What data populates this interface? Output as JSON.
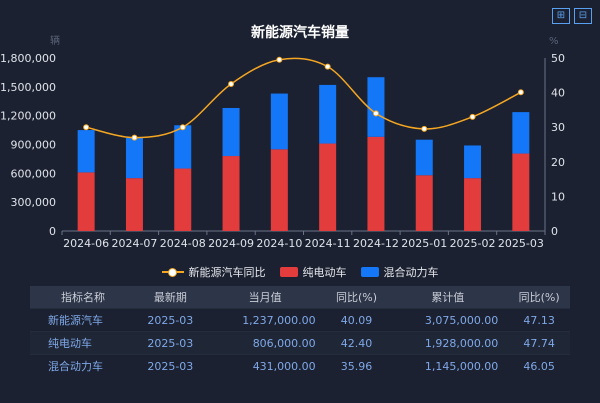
{
  "title": "新能源汽车销量",
  "axis_left_unit": "辆",
  "axis_right_unit": "%",
  "legend": [
    "新能源汽车同比",
    "纯电动车",
    "混合动力车"
  ],
  "colors": {
    "pure": "#e23c3c",
    "hybrid": "#1477f8",
    "line": "#f5a623"
  },
  "chart_data": {
    "type": "bar",
    "categories": [
      "2024-06",
      "2024-07",
      "2024-08",
      "2024-09",
      "2024-10",
      "2024-11",
      "2024-12",
      "2025-01",
      "2025-02",
      "2025-03"
    ],
    "series": [
      {
        "name": "纯电动车",
        "type": "bar",
        "stack": "total",
        "values": [
          610000,
          550000,
          650000,
          780000,
          850000,
          910000,
          980000,
          580000,
          550000,
          806000
        ]
      },
      {
        "name": "混合动力车",
        "type": "bar",
        "stack": "total",
        "values": [
          440000,
          420000,
          450000,
          500000,
          580000,
          610000,
          620000,
          370000,
          340000,
          431000
        ]
      },
      {
        "name": "新能源汽车同比",
        "type": "line",
        "axis": "right",
        "values": [
          30,
          27,
          30,
          42.5,
          49.5,
          47.5,
          34,
          29.5,
          33,
          40.09
        ]
      }
    ],
    "ylim_left": [
      0,
      1800000
    ],
    "yticks_left": [
      "0",
      "300,000",
      "600,000",
      "900,000",
      "1,200,000",
      "1,500,000",
      "1,800,000"
    ],
    "ylim_right": [
      0,
      50
    ],
    "yticks_right": [
      "0",
      "10",
      "20",
      "30",
      "40",
      "50"
    ]
  },
  "table": {
    "headers": [
      "指标名称",
      "最新期",
      "当月值",
      "同比(%)",
      "累计值",
      "同比(%)"
    ],
    "rows": [
      [
        "新能源汽车",
        "2025-03",
        "1,237,000.00",
        "40.09",
        "3,075,000.00",
        "47.13"
      ],
      [
        "纯电动车",
        "2025-03",
        "806,000.00",
        "42.40",
        "1,928,000.00",
        "47.74"
      ],
      [
        "混合动力车",
        "2025-03",
        "431,000.00",
        "35.96",
        "1,145,000.00",
        "46.05"
      ]
    ]
  }
}
